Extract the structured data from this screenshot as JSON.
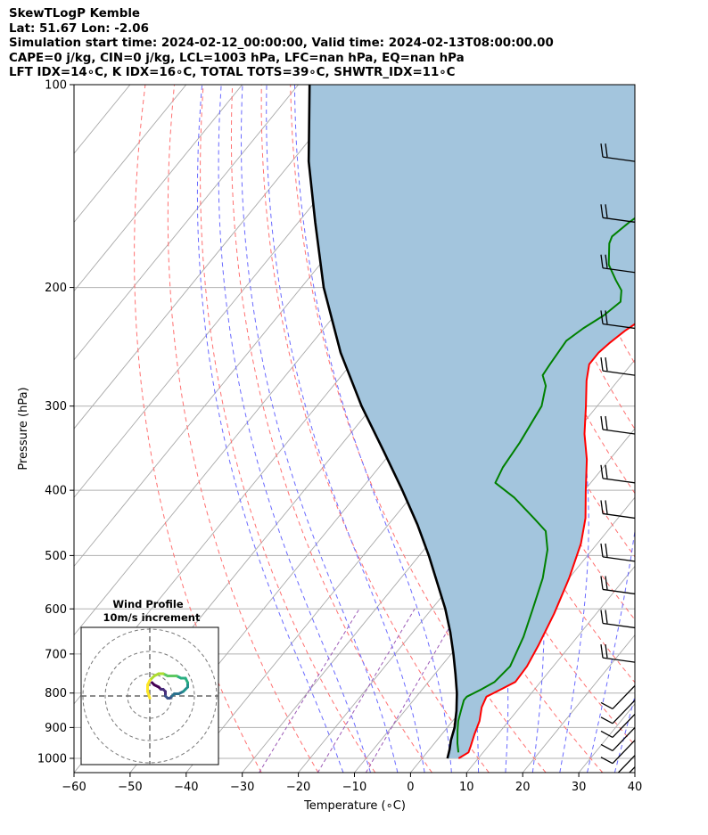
{
  "header": {
    "line1": "SkewTLogP Kemble",
    "line2": "Lat: 51.67   Lon: -2.06",
    "line3": "Simulation start time: 2024-02-12_00:00:00, Valid time: 2024-02-13T08:00:00.00",
    "line4": "CAPE=0 j/kg, CIN=0 j/kg, LCL=1003 hPa, LFC=nan hPa, EQ=nan hPa",
    "line5": "LFT IDX=14∘C, K IDX=16∘C, TOTAL TOTS=39∘C, SHWTR_IDX=11∘C"
  },
  "chart_data": [
    {
      "type": "line",
      "subtype": "skew-t log-p",
      "xlabel": "Temperature (∘C)",
      "ylabel": "Pressure (hPa)",
      "xlim": [
        -60,
        40
      ],
      "ylim": [
        1050,
        100
      ],
      "y_scale": "log",
      "x_ticks": [
        -60,
        -50,
        -40,
        -30,
        -20,
        -10,
        0,
        10,
        20,
        30,
        40
      ],
      "y_ticks": [
        100,
        200,
        300,
        400,
        500,
        600,
        700,
        800,
        900,
        1000
      ],
      "grid": true,
      "series": [
        {
          "role": "temperature",
          "color": "#ff0000",
          "points": [
            [
              6.5,
              1000
            ],
            [
              7.4,
              980
            ],
            [
              6.9,
              960
            ],
            [
              5.8,
              920
            ],
            [
              4.8,
              880
            ],
            [
              3.2,
              840
            ],
            [
              2.5,
              810
            ],
            [
              4.0,
              790
            ],
            [
              5.5,
              770
            ],
            [
              5.3,
              730
            ],
            [
              4.3,
              680
            ],
            [
              2.5,
              610
            ],
            [
              0.0,
              540
            ],
            [
              -2.9,
              480
            ],
            [
              -5.8,
              440
            ],
            [
              -9.8,
              400
            ],
            [
              -14.1,
              360
            ],
            [
              -18.2,
              330
            ],
            [
              -22.0,
              300
            ],
            [
              -25.6,
              275
            ],
            [
              -27.5,
              260
            ],
            [
              -27.5,
              250
            ],
            [
              -27.0,
              242
            ],
            [
              -26.0,
              232
            ],
            [
              -24.5,
              222
            ],
            [
              -22.3,
              210
            ],
            [
              -19.8,
              200
            ],
            [
              -16.5,
              190
            ],
            [
              -13.0,
              180
            ],
            [
              -9.5,
              170
            ],
            [
              -5.5,
              160
            ],
            [
              -2.0,
              150
            ],
            [
              0.5,
              143
            ],
            [
              2.5,
              135
            ],
            [
              4.0,
              128
            ],
            [
              5.0,
              120
            ],
            [
              5.5,
              110
            ],
            [
              5.8,
              100
            ]
          ]
        },
        {
          "role": "dewpoint",
          "color": "#008000",
          "points": [
            [
              5.6,
              980
            ],
            [
              4.1,
              950
            ],
            [
              2.3,
              910
            ],
            [
              1.0,
              880
            ],
            [
              0.0,
              850
            ],
            [
              -1.0,
              820
            ],
            [
              -1.0,
              810
            ],
            [
              0.5,
              790
            ],
            [
              1.8,
              770
            ],
            [
              2.3,
              730
            ],
            [
              0.4,
              660
            ],
            [
              -2.0,
              600
            ],
            [
              -4.7,
              540
            ],
            [
              -8.0,
              490
            ],
            [
              -11.0,
              460
            ],
            [
              -15.0,
              440
            ],
            [
              -21.5,
              410
            ],
            [
              -27.0,
              390
            ],
            [
              -27.9,
              370
            ],
            [
              -28.5,
              340
            ],
            [
              -29.9,
              300
            ],
            [
              -32.1,
              280
            ],
            [
              -34.2,
              270
            ],
            [
              -34.5,
              260
            ],
            [
              -35.0,
              240
            ],
            [
              -33.8,
              230
            ],
            [
              -32.0,
              220
            ],
            [
              -31.0,
              210
            ],
            [
              -32.5,
              202
            ],
            [
              -35.0,
              195
            ],
            [
              -38.5,
              185
            ],
            [
              -41.5,
              172
            ],
            [
              -42.0,
              168
            ],
            [
              -41.0,
              160
            ],
            [
              -39.0,
              150
            ],
            [
              -37.0,
              140
            ],
            [
              -34.5,
              130
            ],
            [
              -32.0,
              120
            ],
            [
              -29.5,
              110
            ],
            [
              -27.0,
              100
            ]
          ]
        },
        {
          "role": "parcel",
          "color": "#000000",
          "points": [
            [
              4.5,
              1000
            ],
            [
              3.6,
              970
            ],
            [
              2.5,
              940
            ],
            [
              1.3,
              900
            ],
            [
              -0.8,
              850
            ],
            [
              -3.3,
              800
            ],
            [
              -6.3,
              750
            ],
            [
              -9.6,
              700
            ],
            [
              -13.3,
              650
            ],
            [
              -17.6,
              600
            ],
            [
              -22.7,
              550
            ],
            [
              -28.3,
              500
            ],
            [
              -34.8,
              450
            ],
            [
              -42.5,
              400
            ],
            [
              -51.5,
              350
            ],
            [
              -62.0,
              300
            ],
            [
              -73.5,
              250
            ],
            [
              -86.0,
              200
            ],
            [
              -97.0,
              160
            ],
            [
              -107.0,
              130
            ],
            [
              -118.0,
              100
            ]
          ]
        }
      ],
      "shaded_region": {
        "between": [
          "parcel",
          "temperature"
        ],
        "color": "#a3c5dd"
      },
      "wind_barbs": {
        "pressures": [
          100,
          130,
          160,
          190,
          230,
          270,
          330,
          390,
          440,
          510,
          570,
          640,
          720,
          780,
          820,
          860,
          900,
          940,
          990,
          1030
        ],
        "color": "#000000"
      },
      "background_lines": {
        "isotherms": {
          "color": "#a9a9a9"
        },
        "dry_adiabats": {
          "color": "#ff7070",
          "style": "dashed"
        },
        "moist_adiabats": {
          "color": "#6a6aff",
          "style": "dashed"
        },
        "mixing_ratio": {
          "color": "#9b59b6",
          "style": "dashed"
        }
      }
    },
    {
      "type": "hodograph",
      "title": "Wind Profile",
      "subtitle": "10m/s increment",
      "rings": [
        10,
        20,
        30
      ],
      "points_uv": [
        [
          1,
          -6
        ],
        [
          2,
          -5
        ],
        [
          4,
          -4
        ],
        [
          5,
          -3
        ],
        [
          6,
          -3
        ],
        [
          7,
          -2
        ],
        [
          7,
          0
        ],
        [
          8,
          1
        ],
        [
          9,
          1
        ],
        [
          10,
          0
        ],
        [
          11,
          -1
        ],
        [
          13,
          -1
        ],
        [
          15,
          -2
        ],
        [
          16,
          -3
        ],
        [
          17,
          -4
        ],
        [
          17,
          -6
        ],
        [
          16,
          -8
        ],
        [
          14,
          -8
        ],
        [
          12,
          -9
        ],
        [
          10,
          -9
        ],
        [
          8,
          -9
        ],
        [
          6,
          -10
        ],
        [
          4,
          -10
        ],
        [
          2,
          -9
        ],
        [
          0,
          -7
        ],
        [
          -1,
          -5
        ],
        [
          -1,
          -2
        ],
        [
          0,
          1
        ]
      ]
    }
  ]
}
